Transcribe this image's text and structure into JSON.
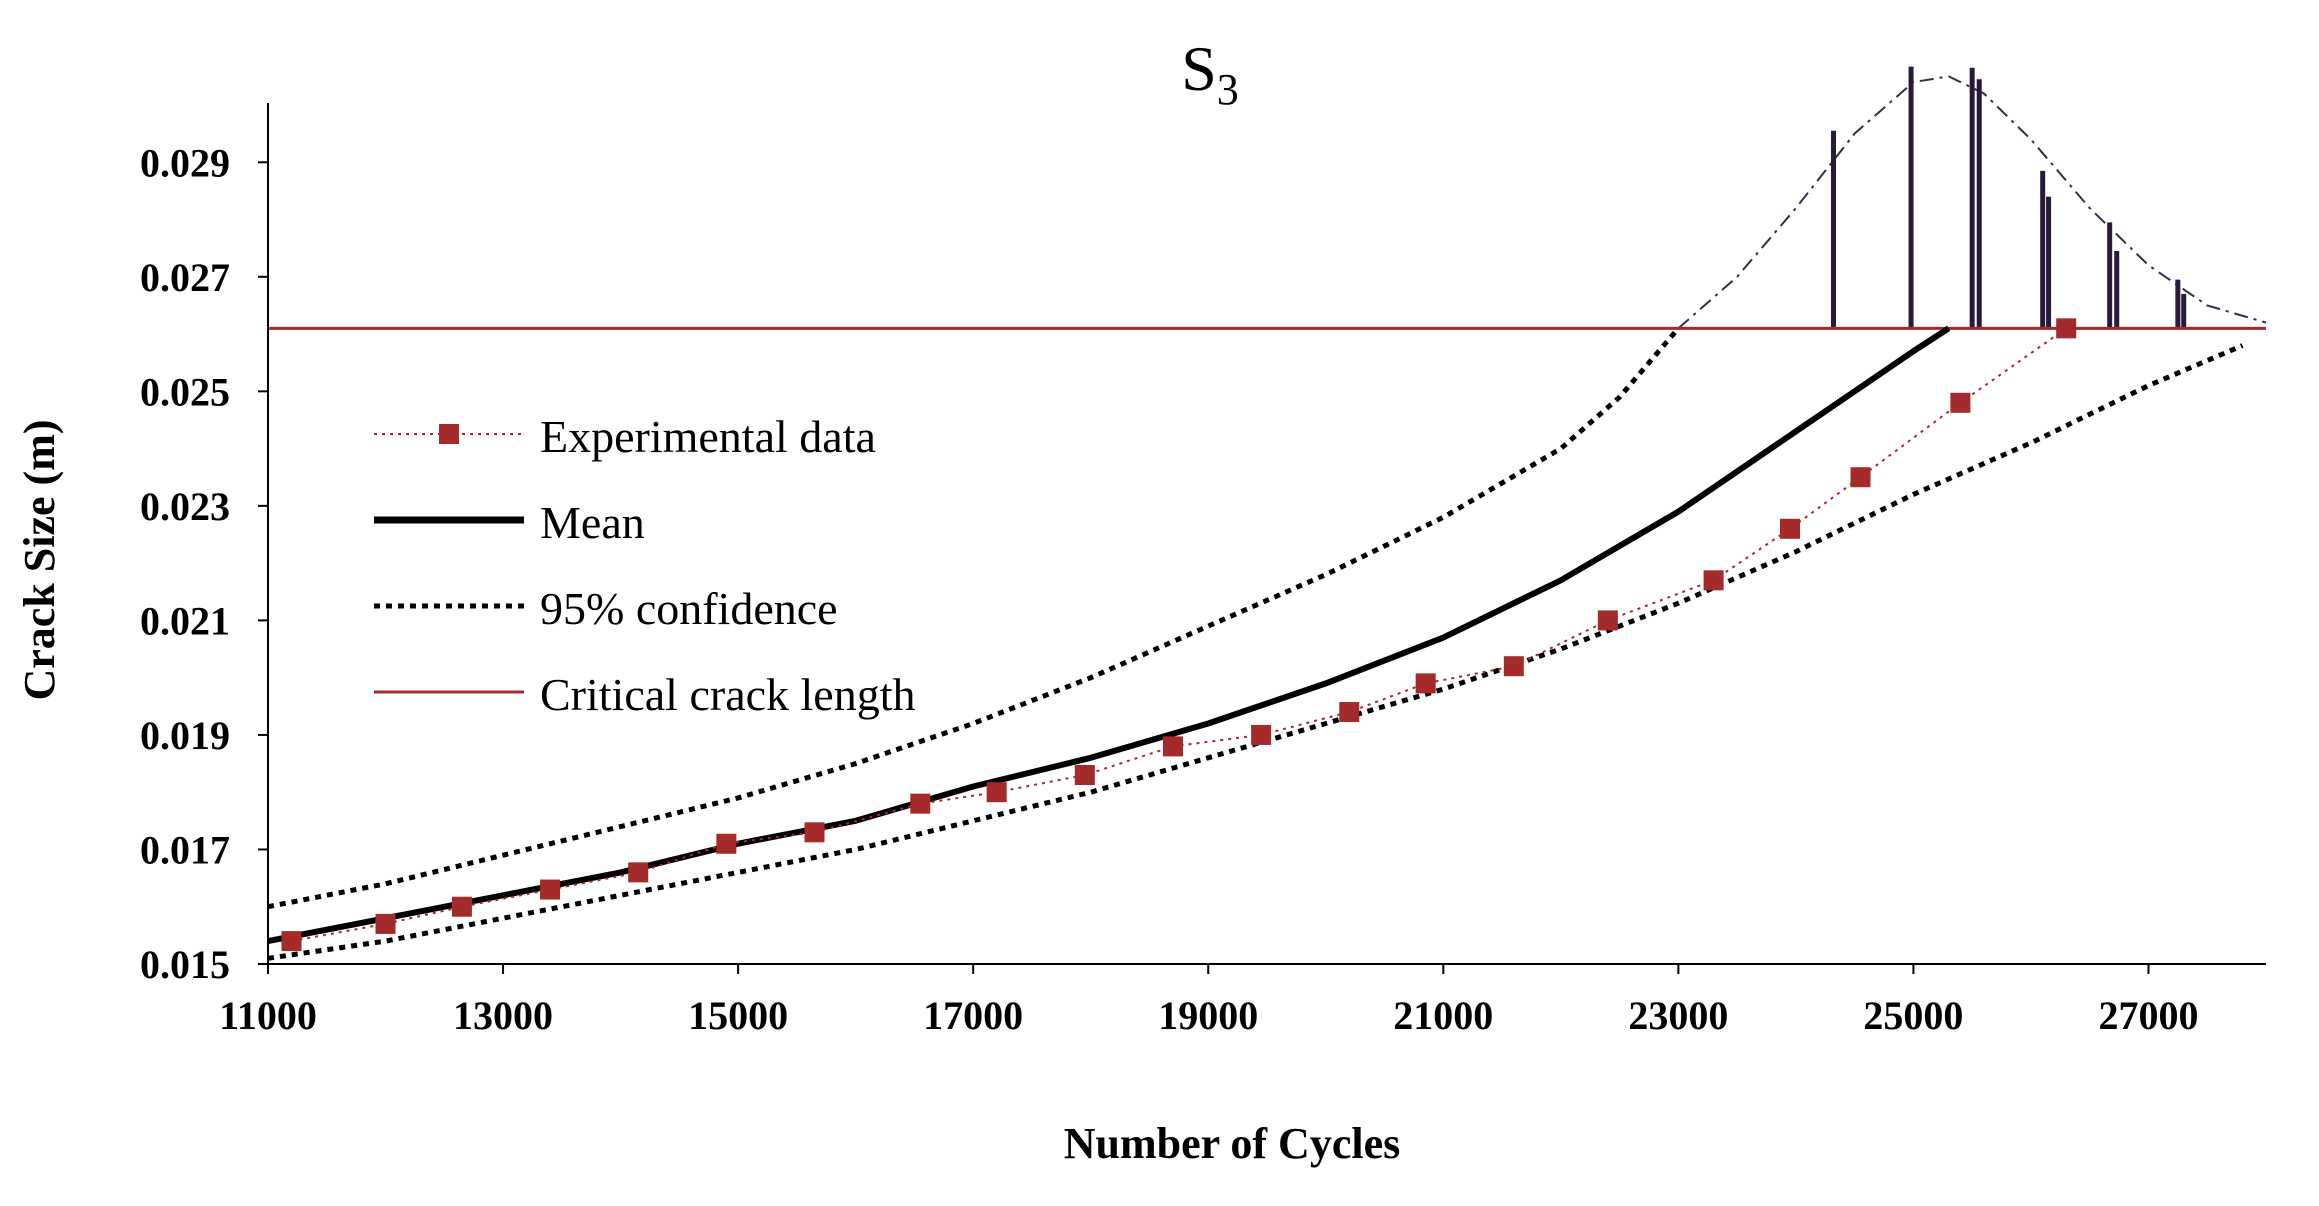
{
  "chart_data": {
    "type": "line",
    "title": "S",
    "title_subscript": "3",
    "xlabel": "Number of Cycles",
    "ylabel": "Crack Size (m)",
    "xlim": [
      11000,
      28000
    ],
    "ylim": [
      0.015,
      0.03
    ],
    "x_ticks": [
      "11000",
      "13000",
      "15000",
      "17000",
      "19000",
      "21000",
      "23000",
      "25000",
      "27000"
    ],
    "y_ticks": [
      "0.015",
      "0.017",
      "0.019",
      "0.021",
      "0.023",
      "0.025",
      "0.027",
      "0.029"
    ],
    "grid": false,
    "legend_position": "left",
    "series": [
      {
        "name": "Experimental data",
        "style": "dotted-line-square-markers",
        "color": "#a52a2a",
        "x": [
          11200,
          12000,
          12650,
          13400,
          14150,
          14900,
          15650,
          16550,
          17200,
          17950,
          18700,
          19450,
          20200,
          20850,
          21600,
          22400,
          23300,
          23950,
          24550,
          25400,
          26300
        ],
        "y": [
          0.0154,
          0.0157,
          0.016,
          0.0163,
          0.0166,
          0.0171,
          0.0173,
          0.0178,
          0.018,
          0.0183,
          0.0188,
          0.019,
          0.0194,
          0.0199,
          0.0202,
          0.021,
          0.0217,
          0.0226,
          0.0235,
          0.0248,
          0.0261
        ]
      },
      {
        "name": "Mean",
        "style": "solid-thick",
        "color": "#000000",
        "x": [
          11000,
          12000,
          13000,
          14000,
          15000,
          16000,
          17000,
          18000,
          19000,
          20000,
          21000,
          22000,
          23000,
          24000,
          25000,
          25300
        ],
        "y": [
          0.0154,
          0.0158,
          0.0162,
          0.0166,
          0.0171,
          0.0175,
          0.0181,
          0.0186,
          0.0192,
          0.0199,
          0.0207,
          0.0217,
          0.0229,
          0.0243,
          0.0257,
          0.0261
        ]
      },
      {
        "name": "95% confidence",
        "style": "dotted",
        "color": "#000000",
        "bound": "upper",
        "x": [
          11000,
          12000,
          13000,
          14000,
          15000,
          16000,
          17000,
          18000,
          19000,
          20000,
          21000,
          22000,
          22500,
          23000
        ],
        "y": [
          0.016,
          0.0164,
          0.0169,
          0.0174,
          0.0179,
          0.0185,
          0.0192,
          0.02,
          0.0209,
          0.0218,
          0.0228,
          0.024,
          0.0249,
          0.0261
        ]
      },
      {
        "name": "95% confidence",
        "style": "dotted",
        "color": "#000000",
        "bound": "lower",
        "x": [
          11000,
          12000,
          13000,
          14000,
          15000,
          16000,
          17000,
          18000,
          19000,
          20000,
          21000,
          22000,
          23000,
          24000,
          25000,
          26000,
          27000,
          27800
        ],
        "y": [
          0.0151,
          0.0154,
          0.0158,
          0.0162,
          0.0166,
          0.017,
          0.0175,
          0.018,
          0.0186,
          0.0192,
          0.0198,
          0.0205,
          0.0213,
          0.0222,
          0.0232,
          0.0241,
          0.0251,
          0.0258
        ]
      },
      {
        "name": "Critical crack length",
        "style": "solid",
        "color": "#a52a2a",
        "x": [
          11000,
          28000
        ],
        "y": [
          0.0261,
          0.0261
        ]
      }
    ],
    "histogram": {
      "baseline_y": 0.0261,
      "color": "#2a1a3a",
      "bars": [
        {
          "x": 24320,
          "height": 0.00345
        },
        {
          "x": 24980,
          "height": 0.00457
        },
        {
          "x": 25500,
          "height": 0.00455
        },
        {
          "x": 25560,
          "height": 0.00435
        },
        {
          "x": 26100,
          "height": 0.00275
        },
        {
          "x": 26150,
          "height": 0.0023
        },
        {
          "x": 26670,
          "height": 0.00185
        },
        {
          "x": 26730,
          "height": 0.00135
        },
        {
          "x": 27250,
          "height": 0.00085
        },
        {
          "x": 27300,
          "height": 0.0006
        }
      ],
      "pdf_curve": {
        "x": [
          23000,
          23500,
          24000,
          24500,
          25000,
          25300,
          25600,
          26000,
          26500,
          27000,
          27500,
          28000
        ],
        "y": [
          0.0261,
          0.027,
          0.0282,
          0.0295,
          0.0304,
          0.0305,
          0.0302,
          0.0294,
          0.0282,
          0.0272,
          0.0265,
          0.0262
        ]
      }
    }
  }
}
